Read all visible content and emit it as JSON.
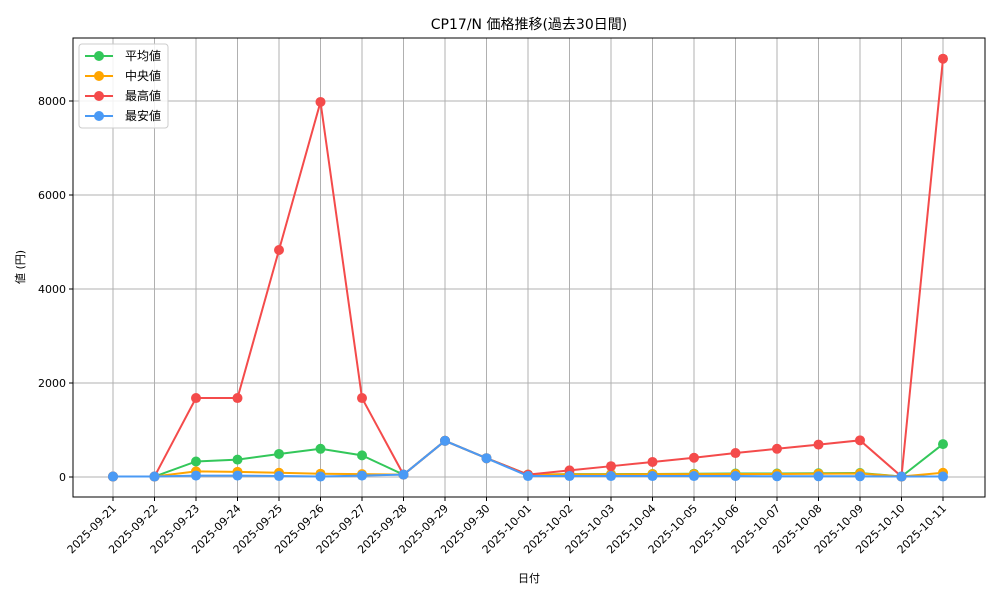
{
  "chart_data": {
    "type": "line",
    "title": "CP17/N 価格推移(過去30日間)",
    "xlabel": "日付",
    "ylabel": "値 (円)",
    "ylim": [
      -420,
      9330
    ],
    "yticks": [
      0,
      2000,
      4000,
      6000,
      8000
    ],
    "grid": true,
    "legend_position": "upper left",
    "categories": [
      "2025-09-21",
      "2025-09-22",
      "2025-09-23",
      "2025-09-24",
      "2025-09-25",
      "2025-09-26",
      "2025-09-27",
      "2025-09-28",
      "2025-09-29",
      "2025-09-30",
      "2025-10-01",
      "2025-10-02",
      "2025-10-03",
      "2025-10-04",
      "2025-10-05",
      "2025-10-06",
      "2025-10-07",
      "2025-10-08",
      "2025-10-09",
      "2025-10-10",
      "2025-10-11"
    ],
    "series": [
      {
        "name": "平均値",
        "color": "#33c75a",
        "values": [
          10,
          10,
          330,
          370,
          490,
          600,
          460,
          50,
          770,
          400,
          50,
          60,
          60,
          65,
          70,
          75,
          75,
          80,
          85,
          10,
          700
        ]
      },
      {
        "name": "中央値",
        "color": "#ffa500",
        "values": [
          10,
          10,
          120,
          110,
          90,
          70,
          60,
          50,
          770,
          400,
          50,
          55,
          55,
          60,
          60,
          65,
          65,
          70,
          75,
          10,
          90
        ]
      },
      {
        "name": "最高値",
        "color": "#f44b4b",
        "values": [
          10,
          10,
          1680,
          1680,
          4830,
          7980,
          1680,
          50,
          770,
          400,
          50,
          140,
          230,
          320,
          410,
          510,
          600,
          690,
          780,
          10,
          8900
        ]
      },
      {
        "name": "最安値",
        "color": "#4a9af5",
        "values": [
          10,
          10,
          30,
          30,
          20,
          10,
          30,
          50,
          770,
          400,
          20,
          20,
          20,
          20,
          20,
          20,
          15,
          15,
          15,
          10,
          10
        ]
      }
    ]
  }
}
